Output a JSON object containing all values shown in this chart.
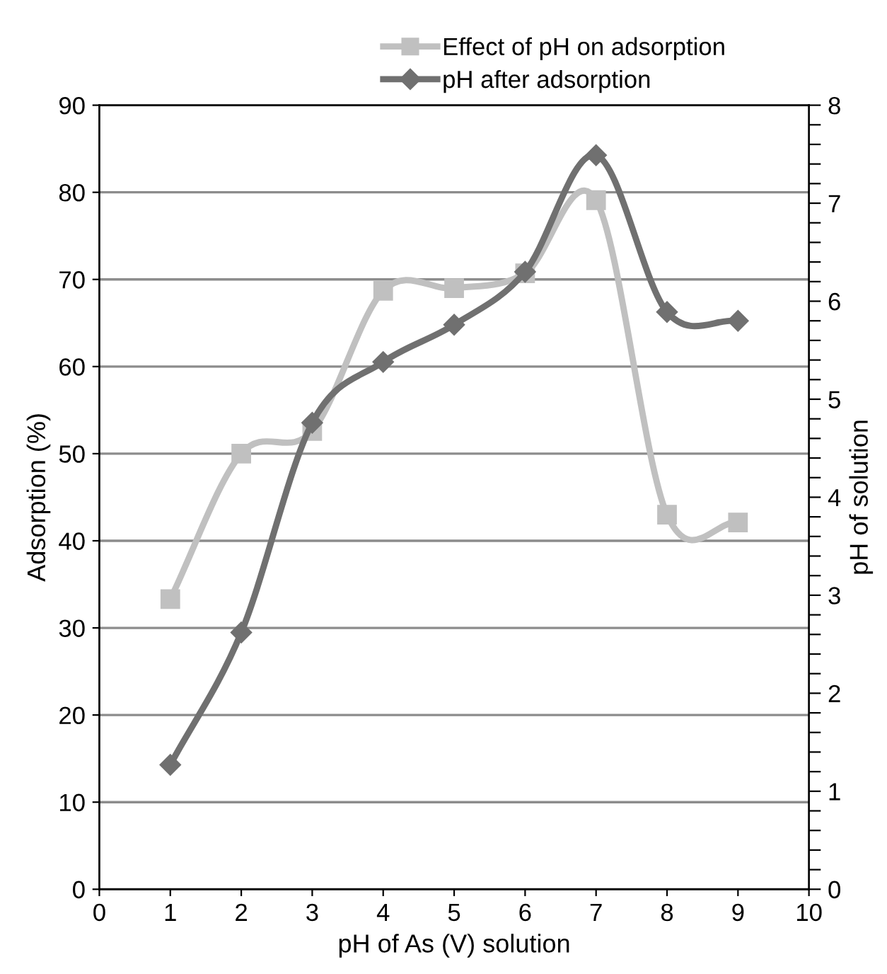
{
  "chart_data": {
    "type": "line",
    "xlabel": "pH of As (V) solution",
    "ylabel": "Adsorption (%)",
    "y2label": "pH of solution",
    "xlim": [
      0,
      10
    ],
    "xticks": [
      0,
      1,
      2,
      3,
      4,
      5,
      6,
      7,
      8,
      9,
      10
    ],
    "ylim": [
      0,
      90
    ],
    "yticks": [
      0,
      10,
      20,
      30,
      40,
      50,
      60,
      70,
      80,
      90
    ],
    "y2lim": [
      0,
      8
    ],
    "y2ticks": [
      0,
      {
        "value": 0.2,
        "label": null
      },
      {
        "value": 0.4,
        "label": null
      },
      {
        "value": 0.6,
        "label": null
      },
      {
        "value": 0.8,
        "label": null
      },
      1,
      {
        "value": 1.2,
        "label": null
      },
      {
        "value": 1.4,
        "label": null
      },
      {
        "value": 1.6,
        "label": null
      },
      {
        "value": 1.8,
        "label": null
      },
      2,
      {
        "value": 2.2,
        "label": null
      },
      {
        "value": 2.4,
        "label": null
      },
      {
        "value": 2.6,
        "label": null
      },
      {
        "value": 2.8,
        "label": null
      },
      3,
      {
        "value": 3.2,
        "label": null
      },
      {
        "value": 3.4,
        "label": null
      },
      {
        "value": 3.6,
        "label": null
      },
      {
        "value": 3.8,
        "label": null
      },
      4,
      {
        "value": 4.2,
        "label": null
      },
      {
        "value": 4.4,
        "label": null
      },
      {
        "value": 4.6,
        "label": null
      },
      {
        "value": 4.8,
        "label": null
      },
      5,
      {
        "value": 5.2,
        "label": null
      },
      {
        "value": 5.4,
        "label": null
      },
      {
        "value": 5.6,
        "label": null
      },
      {
        "value": 5.8,
        "label": null
      },
      6,
      {
        "value": 6.2,
        "label": null
      },
      {
        "value": 6.4,
        "label": null
      },
      {
        "value": 6.6,
        "label": null
      },
      {
        "value": 6.8,
        "label": null
      },
      7,
      {
        "value": 7.2,
        "label": null
      },
      {
        "value": 7.4,
        "label": null
      },
      {
        "value": 7.6,
        "label": null
      },
      {
        "value": 7.8,
        "label": null
      },
      8
    ],
    "grid": "y",
    "legend": "top right",
    "series": [
      {
        "name": "Effect of pH on adsorption",
        "color": "#c0c0c0",
        "marker": "square",
        "x": [
          1,
          2,
          3,
          4,
          5,
          6,
          7,
          8,
          9
        ],
        "values": [
          33.3,
          50.0,
          52.6,
          68.7,
          69.0,
          70.7,
          79.1,
          43.0,
          42.1
        ]
      },
      {
        "name": "pH after adsorption",
        "color": "#707070",
        "marker": "diamond",
        "axis": "y2",
        "x": [
          1,
          2,
          3,
          4,
          5,
          6,
          7,
          8,
          9
        ],
        "values": [
          1.27,
          2.62,
          4.76,
          5.38,
          5.76,
          6.3,
          7.49,
          5.89,
          5.8
        ]
      }
    ]
  }
}
